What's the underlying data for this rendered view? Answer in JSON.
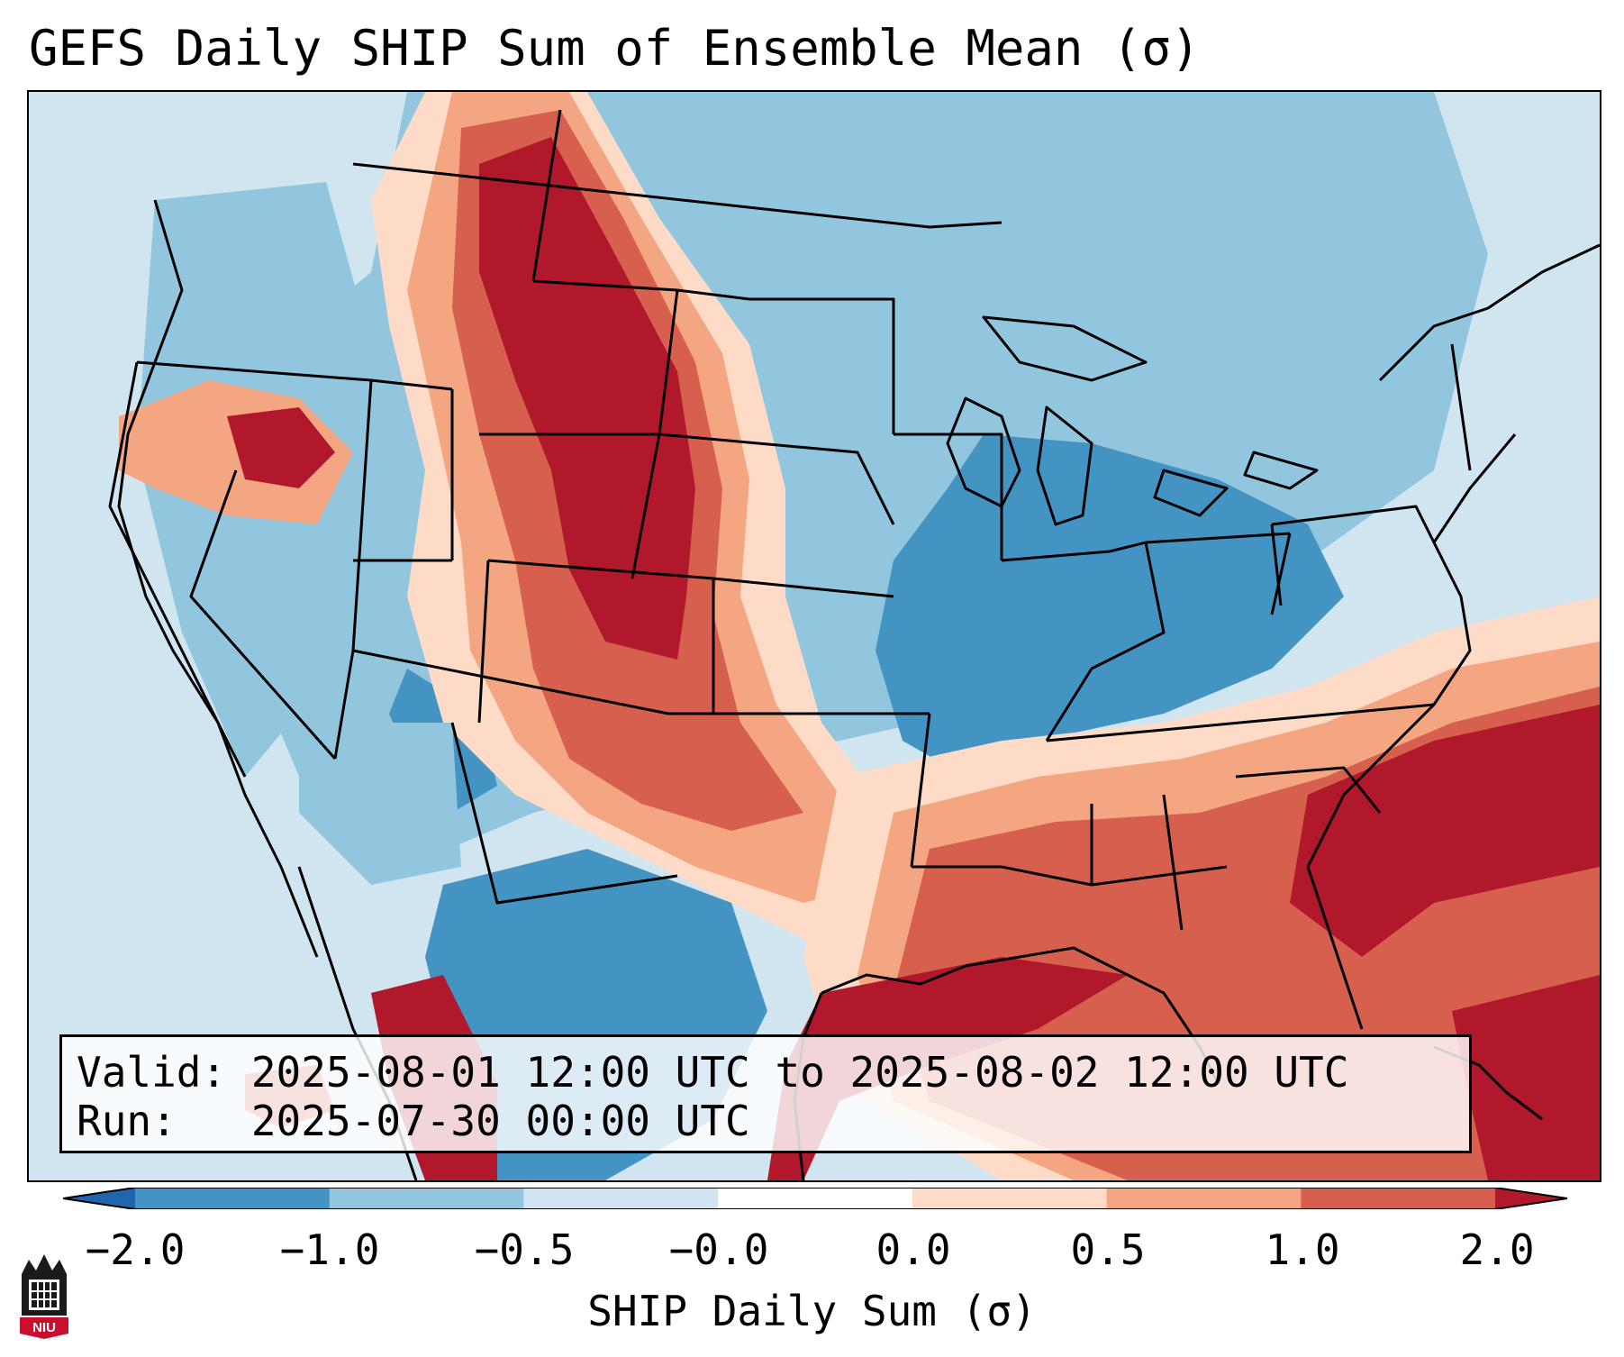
{
  "title": "GEFS Daily SHIP Sum of Ensemble Mean (σ)",
  "info": {
    "valid_line": "Valid: 2025-08-01 12:00 UTC to 2025-08-02 12:00 UTC",
    "run_line": "Run:   2025-07-30 00:00 UTC"
  },
  "colorbar": {
    "label": "SHIP Daily Sum (σ)",
    "ticks": [
      "−2.0",
      "−1.0",
      "−0.5",
      "−0.0",
      "0.0",
      "0.5",
      "1.0",
      "2.0"
    ],
    "extend": "both",
    "colors": [
      "#2166ac",
      "#4393c3",
      "#92c5de",
      "#d1e5f0",
      "#ffffff",
      "#fddbc7",
      "#f4a582",
      "#d6604d",
      "#b2182b"
    ]
  },
  "logo": {
    "text": "NIU",
    "color": "#c8102e"
  },
  "map": {
    "region": "Contiguous United States",
    "projection": "Lambert conformal",
    "ocean_fill": "#d1e5f0",
    "features": [
      "state borders",
      "coastlines",
      "country borders"
    ]
  }
}
